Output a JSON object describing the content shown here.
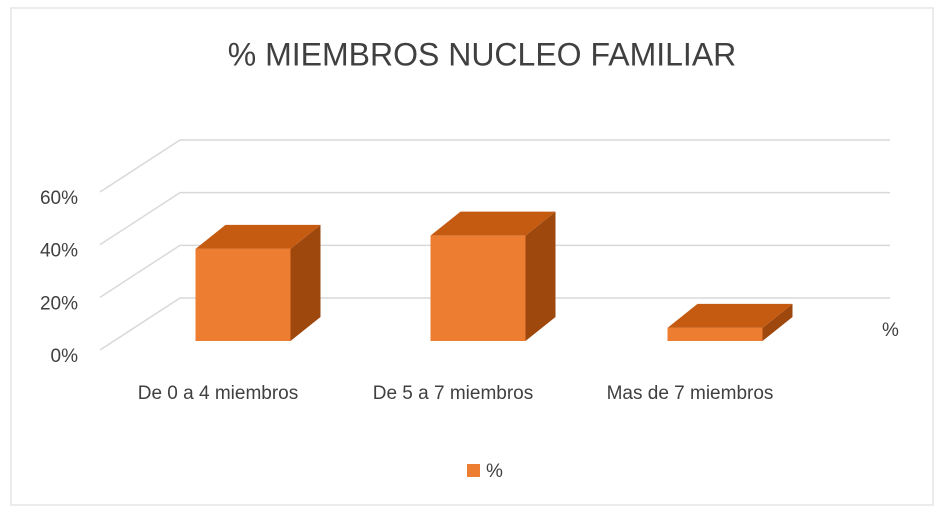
{
  "chart_data": {
    "type": "bar3d",
    "title": "% MIEMBROS NUCLEO FAMILIAR",
    "categories": [
      "De 0 a 4 miembros",
      "De 5 a 7 miembros",
      "Mas de 7 miembros"
    ],
    "series": [
      {
        "name": "%",
        "color": "#ed7d31",
        "values": [
          35,
          40,
          5
        ]
      }
    ],
    "ylim": [
      0,
      60
    ],
    "yticks": [
      {
        "value": 0,
        "label": "0%"
      },
      {
        "value": 20,
        "label": "20%"
      },
      {
        "value": 40,
        "label": "40%"
      },
      {
        "value": 60,
        "label": "60%"
      }
    ],
    "grid": true,
    "legend": "bottom"
  }
}
